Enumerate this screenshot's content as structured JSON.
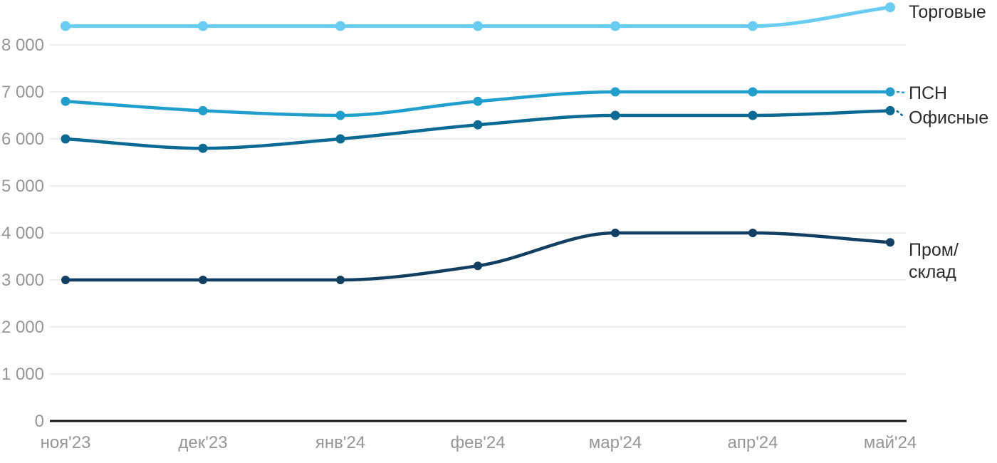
{
  "chart_data": {
    "type": "line",
    "title": "",
    "xlabel": "",
    "ylabel": "",
    "categories": [
      "ноя'23",
      "дек'23",
      "янв'24",
      "фев'24",
      "мар'24",
      "апр'24",
      "май'24"
    ],
    "series": [
      {
        "name": "Торговые",
        "label_lines": [
          "Торговые"
        ],
        "color": "#69ccf2",
        "values": [
          8400,
          8400,
          8400,
          8400,
          8400,
          8400,
          8800
        ],
        "label_connector": false
      },
      {
        "name": "ПСН",
        "label_lines": [
          "ПСН"
        ],
        "color": "#209fcd",
        "values": [
          6800,
          6600,
          6500,
          6800,
          7000,
          7000,
          7000
        ],
        "label_connector": true
      },
      {
        "name": "Офисные",
        "label_lines": [
          "Офисные"
        ],
        "color": "#0b6a93",
        "values": [
          6000,
          5800,
          6000,
          6300,
          6500,
          6500,
          6600
        ],
        "label_connector": true
      },
      {
        "name": "Пром/склад",
        "label_lines": [
          "Пром/",
          "склад"
        ],
        "color": "#123f61",
        "values": [
          3000,
          3000,
          3000,
          3300,
          4000,
          4000,
          3800
        ],
        "label_connector": false
      }
    ],
    "y_ticks": [
      {
        "value": 0,
        "label": "0"
      },
      {
        "value": 1000,
        "label": "1 000"
      },
      {
        "value": 2000,
        "label": "2 000"
      },
      {
        "value": 3000,
        "label": "3 000"
      },
      {
        "value": 4000,
        "label": "4 000"
      },
      {
        "value": 5000,
        "label": "5 000"
      },
      {
        "value": 6000,
        "label": "6 000"
      },
      {
        "value": 7000,
        "label": "7 000"
      },
      {
        "value": 8000,
        "label": "8 000"
      }
    ],
    "ylim": [
      0,
      8900
    ],
    "grid": "horizontal",
    "legend_position": "right-end-labels",
    "colors": {
      "grid": "#e8e8e8",
      "axis": "#141414",
      "tick_text": "#969696",
      "label_text": "#2b2b2b",
      "background": "#ffffff"
    }
  }
}
